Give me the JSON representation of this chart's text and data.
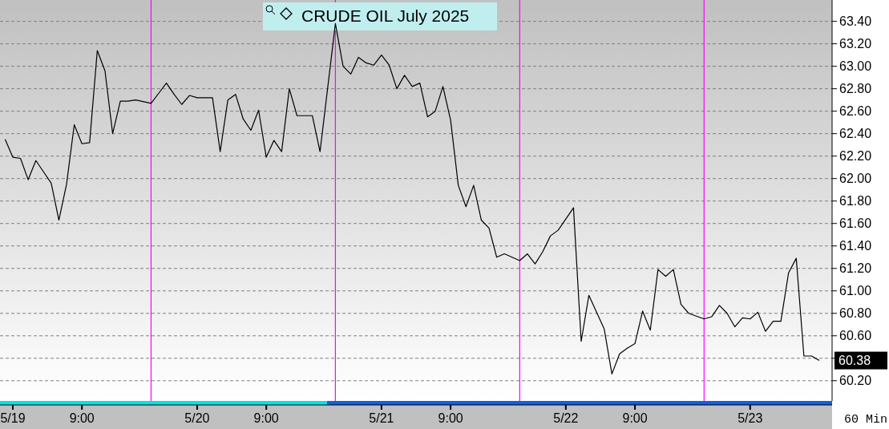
{
  "chart_data": {
    "type": "line",
    "title": "CRUDE OIL July 2025",
    "x": [
      "2025-05-18T23:00",
      "2025-05-19T00:00",
      "2025-05-19T01:00",
      "2025-05-19T02:00",
      "2025-05-19T03:00",
      "2025-05-19T04:00",
      "2025-05-19T05:00",
      "2025-05-19T06:00",
      "2025-05-19T07:00",
      "2025-05-19T08:00",
      "2025-05-19T09:00",
      "2025-05-19T10:00",
      "2025-05-19T11:00",
      "2025-05-19T12:00",
      "2025-05-19T13:00",
      "2025-05-19T14:00",
      "2025-05-19T15:00",
      "2025-05-19T16:00",
      "2025-05-19T18:00",
      "2025-05-19T19:00",
      "2025-05-19T20:00",
      "2025-05-19T21:00",
      "2025-05-19T22:00",
      "2025-05-19T23:00",
      "2025-05-20T00:00",
      "2025-05-20T01:00",
      "2025-05-20T02:00",
      "2025-05-20T03:00",
      "2025-05-20T04:00",
      "2025-05-20T05:00",
      "2025-05-20T06:00",
      "2025-05-20T07:00",
      "2025-05-20T08:00",
      "2025-05-20T09:00",
      "2025-05-20T10:00",
      "2025-05-20T11:00",
      "2025-05-20T12:00",
      "2025-05-20T13:00",
      "2025-05-20T14:00",
      "2025-05-20T15:00",
      "2025-05-20T16:00",
      "2025-05-20T18:00",
      "2025-05-20T19:00",
      "2025-05-20T20:00",
      "2025-05-20T21:00",
      "2025-05-20T22:00",
      "2025-05-20T23:00",
      "2025-05-21T00:00",
      "2025-05-21T01:00",
      "2025-05-21T02:00",
      "2025-05-21T03:00",
      "2025-05-21T04:00",
      "2025-05-21T05:00",
      "2025-05-21T06:00",
      "2025-05-21T07:00",
      "2025-05-21T08:00",
      "2025-05-21T09:00",
      "2025-05-21T10:00",
      "2025-05-21T11:00",
      "2025-05-21T12:00",
      "2025-05-21T13:00",
      "2025-05-21T14:00",
      "2025-05-21T15:00",
      "2025-05-21T16:00",
      "2025-05-21T18:00",
      "2025-05-21T19:00",
      "2025-05-21T20:00",
      "2025-05-21T21:00",
      "2025-05-21T22:00",
      "2025-05-21T23:00",
      "2025-05-22T00:00",
      "2025-05-22T01:00",
      "2025-05-22T02:00",
      "2025-05-22T03:00",
      "2025-05-22T04:00",
      "2025-05-22T05:00",
      "2025-05-22T06:00",
      "2025-05-22T07:00",
      "2025-05-22T08:00",
      "2025-05-22T09:00",
      "2025-05-22T10:00",
      "2025-05-22T11:00",
      "2025-05-22T12:00",
      "2025-05-22T13:00",
      "2025-05-22T14:00",
      "2025-05-22T15:00",
      "2025-05-22T16:00",
      "2025-05-22T18:00",
      "2025-05-22T19:00",
      "2025-05-22T20:00",
      "2025-05-22T21:00",
      "2025-05-22T22:00",
      "2025-05-22T23:00",
      "2025-05-23T00:00",
      "2025-05-23T01:00",
      "2025-05-23T02:00",
      "2025-05-23T03:00",
      "2025-05-23T04:00",
      "2025-05-23T05:00",
      "2025-05-23T06:00",
      "2025-05-23T07:00",
      "2025-05-23T08:00",
      "2025-05-23T09:00"
    ],
    "series": [
      {
        "color": "#000000",
        "values": [
          62.35,
          62.19,
          62.18,
          61.99,
          62.16,
          62.06,
          61.96,
          61.63,
          61.95,
          62.48,
          62.31,
          62.32,
          63.14,
          62.96,
          62.4,
          62.69,
          62.69,
          62.7,
          62.67,
          62.76,
          62.85,
          62.75,
          62.66,
          62.74,
          62.72,
          62.72,
          62.72,
          62.24,
          62.7,
          62.75,
          62.53,
          62.43,
          62.61,
          62.19,
          62.34,
          62.24,
          62.8,
          62.56,
          62.56,
          62.56,
          62.24,
          63.38,
          63.0,
          62.93,
          63.08,
          63.03,
          63.01,
          63.1,
          63.01,
          62.8,
          62.92,
          62.82,
          62.85,
          62.55,
          62.6,
          62.82,
          62.52,
          61.94,
          61.75,
          61.94,
          61.63,
          61.56,
          61.3,
          61.33,
          61.27,
          61.33,
          61.24,
          61.35,
          61.49,
          61.54,
          61.64,
          61.74,
          60.55,
          60.96,
          60.81,
          60.66,
          60.26,
          60.44,
          60.49,
          60.53,
          60.82,
          60.65,
          61.19,
          61.13,
          61.19,
          60.88,
          60.8,
          60.75,
          60.77,
          60.87,
          60.8,
          60.68,
          60.76,
          60.75,
          60.81,
          60.64,
          60.73,
          60.73,
          61.16,
          61.29,
          60.42,
          60.42,
          60.38
        ]
      }
    ],
    "xlim": [
      "2025-05-18T22:20",
      "2025-05-23T10:40"
    ],
    "xticks": [
      {
        "value": "2025-05-19T00:00",
        "label": "5/19"
      },
      {
        "value": "2025-05-19T09:00",
        "label": "9:00"
      },
      {
        "value": "2025-05-20T00:00",
        "label": "5/20"
      },
      {
        "value": "2025-05-20T09:00",
        "label": "9:00"
      },
      {
        "value": "2025-05-21T00:00",
        "label": "5/21"
      },
      {
        "value": "2025-05-21T09:00",
        "label": "9:00"
      },
      {
        "value": "2025-05-22T00:00",
        "label": "5/22"
      },
      {
        "value": "2025-05-22T09:00",
        "label": "9:00"
      },
      {
        "value": "2025-05-23T00:00",
        "label": "5/23"
      }
    ],
    "ylim": [
      60.02,
      63.59
    ],
    "yticks": [
      {
        "value": 60.2,
        "label": "60.20"
      },
      {
        "value": 60.4,
        "label": null
      },
      {
        "value": 60.6,
        "label": "60.60"
      },
      {
        "value": 60.8,
        "label": "60.80"
      },
      {
        "value": 61.0,
        "label": "61.00"
      },
      {
        "value": 61.2,
        "label": "61.20"
      },
      {
        "value": 61.4,
        "label": "61.40"
      },
      {
        "value": 61.6,
        "label": "61.60"
      },
      {
        "value": 61.8,
        "label": "61.80"
      },
      {
        "value": 62.0,
        "label": "62.00"
      },
      {
        "value": 62.2,
        "label": "62.20"
      },
      {
        "value": 62.4,
        "label": "62.40"
      },
      {
        "value": 62.6,
        "label": "62.60"
      },
      {
        "value": 62.8,
        "label": "62.80"
      },
      {
        "value": 63.0,
        "label": "63.00"
      },
      {
        "value": 63.2,
        "label": "63.20"
      },
      {
        "value": 63.4,
        "label": "63.40"
      }
    ],
    "grid": "y",
    "line_style": "solid",
    "marker": "none",
    "ref_lines": [
      {
        "axis": "x",
        "value": "2025-05-19T18:00",
        "color": "#ff00ff"
      },
      {
        "axis": "x",
        "value": "2025-05-20T18:00",
        "color": "#ff00ff"
      },
      {
        "axis": "x",
        "value": "2025-05-21T18:00",
        "color": "#ff00ff"
      },
      {
        "axis": "x",
        "value": "2025-05-22T18:00",
        "color": "#ff00ff"
      }
    ],
    "annotations": [
      "60.38",
      "60 Min"
    ]
  }
}
